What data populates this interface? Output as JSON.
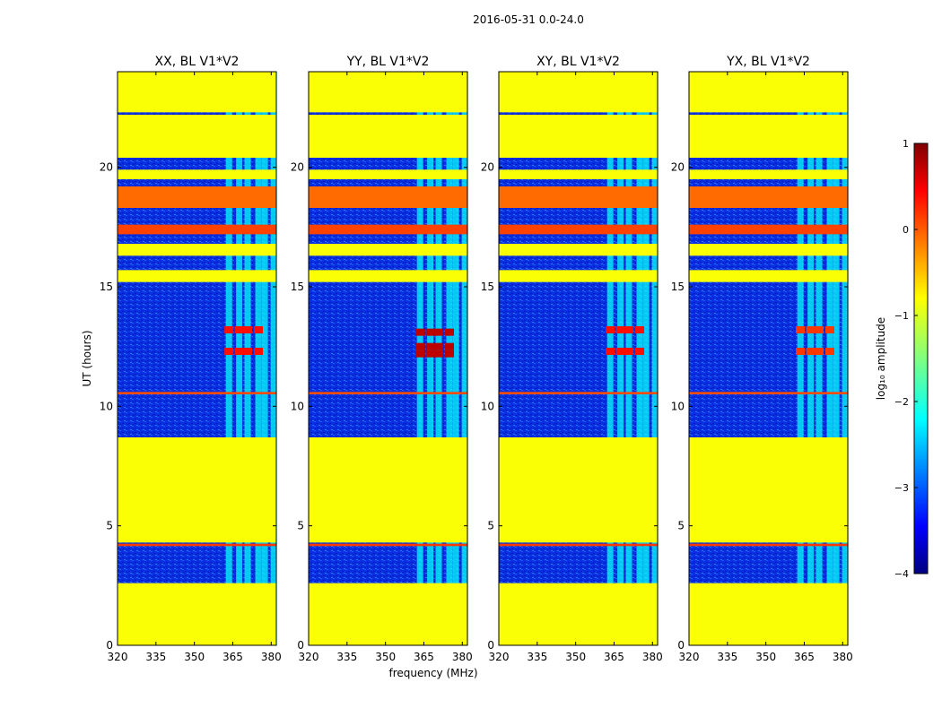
{
  "chart_data": {
    "type": "heatmap",
    "suptitle": "2016-05-31 0.0-24.0",
    "xlabel": "frequency (MHz)",
    "ylabel": "UT (hours)",
    "xlim": [
      320,
      382
    ],
    "ylim": [
      0,
      24
    ],
    "xticks": [
      320,
      335,
      350,
      365,
      380
    ],
    "yticks": [
      0,
      5,
      10,
      15,
      20
    ],
    "colormap": "jet",
    "colorbar": {
      "label": "log₁₀ amplitude",
      "range": [
        -4,
        1
      ],
      "ticks": [
        "1",
        "0",
        "−1",
        "−2",
        "−3",
        "−4"
      ]
    },
    "panels": [
      {
        "title": "XX, BL V1*V2",
        "strong_rows_ut": [
          12.3,
          13.2
        ],
        "strong_level": 0.3
      },
      {
        "title": "YY, BL V1*V2",
        "strong_rows_ut": [
          12.2,
          12.5,
          13.1
        ],
        "strong_level": 0.7
      },
      {
        "title": "XY, BL V1*V2",
        "strong_rows_ut": [
          12.3,
          13.2
        ],
        "strong_level": 0.3
      },
      {
        "title": "YX, BL V1*V2",
        "strong_rows_ut": [
          12.3,
          13.2
        ],
        "strong_level": 0.1
      }
    ],
    "flagged_level": -0.9,
    "flagged_ut_ranges": [
      [
        0,
        2.6
      ],
      [
        4.3,
        8.7
      ],
      [
        15.2,
        15.7
      ],
      [
        16.3,
        16.8
      ],
      [
        19.5,
        19.9
      ],
      [
        20.4,
        22.2
      ],
      [
        22.3,
        24.0
      ]
    ],
    "bright_rows_ut": [
      {
        "range": [
          17.2,
          17.6
        ],
        "level": 0.05
      },
      {
        "range": [
          18.3,
          19.2
        ],
        "level": -0.15
      },
      {
        "range": [
          10.5,
          10.6
        ],
        "level": 0.0
      },
      {
        "range": [
          4.15,
          4.25
        ],
        "level": 0.1
      }
    ],
    "rfi_channels_mhz": [
      363.5,
      367.5,
      370.8,
      375.0,
      377.5,
      381.0
    ],
    "noise_level": -3.0
  }
}
